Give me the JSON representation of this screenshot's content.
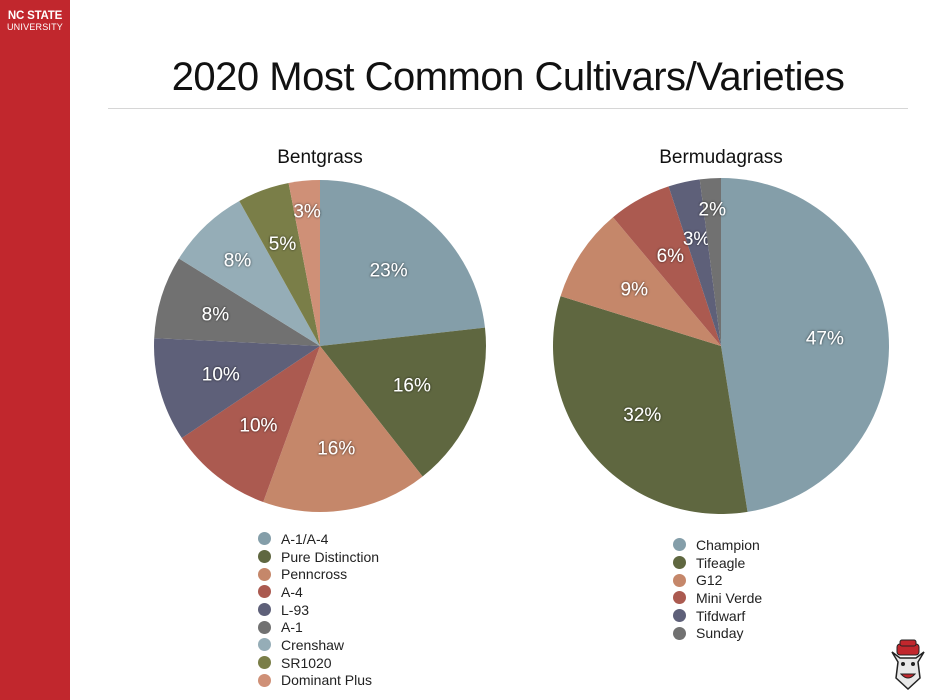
{
  "sidebar": {
    "brand_line1": "NC STATE",
    "brand_line2": "UNIVERSITY",
    "color": "#c1272d"
  },
  "page": {
    "title": "2020 Most Common Cultivars/Varieties"
  },
  "chart_data": [
    {
      "type": "pie",
      "title": "Bentgrass",
      "categories": [
        "A-1/A-4",
        "Pure Distinction",
        "Penncross",
        "A-4",
        "L-93",
        "A-1",
        "Crenshaw",
        "SR1020",
        "Dominant Plus"
      ],
      "values": [
        23,
        16,
        16,
        10,
        10,
        8,
        8,
        5,
        3
      ],
      "labels": [
        "23%",
        "16%",
        "16%",
        "10%",
        "10%",
        "8%",
        "8%",
        "5%",
        "3%"
      ],
      "colors": [
        "#849ea9",
        "#5f6740",
        "#c5876a",
        "#ab5a50",
        "#5e6079",
        "#717171",
        "#95adb7",
        "#7a7e48",
        "#cf9077"
      ],
      "legend_position": "bottom",
      "start_angle_deg": 0,
      "direction": "clockwise"
    },
    {
      "type": "pie",
      "title": "Bermudagrass",
      "categories": [
        "Champion",
        "Tifeagle",
        "G12",
        "Mini Verde",
        "Tifdwarf",
        "Sunday"
      ],
      "values": [
        47,
        32,
        9,
        6,
        3,
        2
      ],
      "labels": [
        "47%",
        "32%",
        "9%",
        "6%",
        "3%",
        "2%"
      ],
      "colors": [
        "#849ea9",
        "#5f6740",
        "#c5876a",
        "#ab5a50",
        "#5e6079",
        "#717171"
      ],
      "legend_position": "bottom",
      "start_angle_deg": 0,
      "direction": "clockwise"
    }
  ],
  "mascot": {
    "icon": "wolf-mascot-icon"
  }
}
